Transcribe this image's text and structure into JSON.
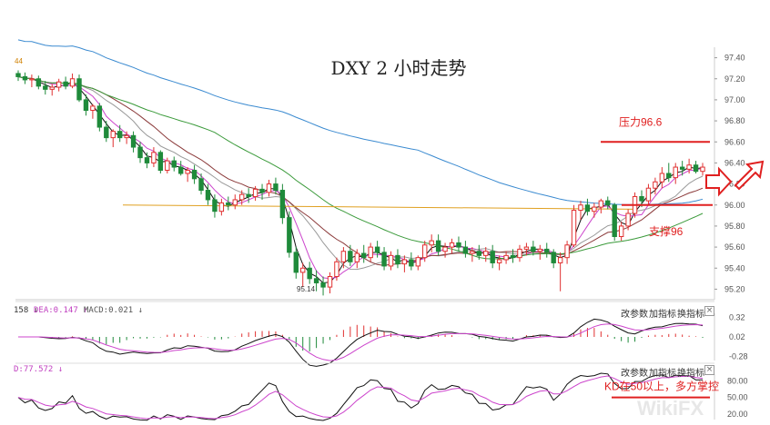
{
  "chart_data": {
    "type": "candlestick",
    "title": "DXY 2 小时走势",
    "price_axis": {
      "ticks": [
        "97.40",
        "97.20",
        "97.00",
        "96.80",
        "96.60",
        "96.40",
        "96.20",
        "96.00",
        "95.80",
        "95.60",
        "95.40",
        "95.20"
      ],
      "ylim": [
        95.1,
        97.5
      ]
    },
    "corner_labels": {
      "top_left": "44",
      "low_label": "95.14"
    },
    "annotations": [
      {
        "text": "压力96.6",
        "level": 96.6
      },
      {
        "text": "支撑96",
        "level": 96.0
      }
    ],
    "candles": [
      [
        97.25,
        97.28,
        97.18,
        97.22
      ],
      [
        97.22,
        97.26,
        97.15,
        97.19
      ],
      [
        97.19,
        97.24,
        97.12,
        97.2
      ],
      [
        97.2,
        97.23,
        97.1,
        97.13
      ],
      [
        97.13,
        97.18,
        97.05,
        97.1
      ],
      [
        97.1,
        97.15,
        97.04,
        97.12
      ],
      [
        97.12,
        97.2,
        97.08,
        97.17
      ],
      [
        97.17,
        97.22,
        97.1,
        97.13
      ],
      [
        97.13,
        97.25,
        97.11,
        97.2
      ],
      [
        97.2,
        97.24,
        96.98,
        97.0
      ],
      [
        97.0,
        97.05,
        96.85,
        96.9
      ],
      [
        96.9,
        96.96,
        96.82,
        96.94
      ],
      [
        96.94,
        96.97,
        96.7,
        96.74
      ],
      [
        96.74,
        96.8,
        96.6,
        96.64
      ],
      [
        96.64,
        96.72,
        96.55,
        96.7
      ],
      [
        96.7,
        96.76,
        96.6,
        96.64
      ],
      [
        96.64,
        96.7,
        96.58,
        96.66
      ],
      [
        96.66,
        96.7,
        96.5,
        96.55
      ],
      [
        96.55,
        96.6,
        96.4,
        96.45
      ],
      [
        96.45,
        96.5,
        96.35,
        96.4
      ],
      [
        96.4,
        96.55,
        96.36,
        96.5
      ],
      [
        96.5,
        96.52,
        96.3,
        96.33
      ],
      [
        96.33,
        96.45,
        96.3,
        96.42
      ],
      [
        96.42,
        96.46,
        96.32,
        96.36
      ],
      [
        96.36,
        96.42,
        96.28,
        96.3
      ],
      [
        96.3,
        96.36,
        96.22,
        96.33
      ],
      [
        96.33,
        96.38,
        96.2,
        96.25
      ],
      [
        96.25,
        96.3,
        96.1,
        96.14
      ],
      [
        96.14,
        96.2,
        96.0,
        96.05
      ],
      [
        96.05,
        96.1,
        95.88,
        95.94
      ],
      [
        95.94,
        96.06,
        95.9,
        96.02
      ],
      [
        96.02,
        96.08,
        95.95,
        96.0
      ],
      [
        96.0,
        96.1,
        95.96,
        96.05
      ],
      [
        96.05,
        96.14,
        96.0,
        96.1
      ],
      [
        96.1,
        96.16,
        96.02,
        96.08
      ],
      [
        96.08,
        96.18,
        96.04,
        96.15
      ],
      [
        96.15,
        96.2,
        96.05,
        96.12
      ],
      [
        96.12,
        96.24,
        96.08,
        96.2
      ],
      [
        96.2,
        96.26,
        96.1,
        96.14
      ],
      [
        96.14,
        96.2,
        95.82,
        95.88
      ],
      [
        95.88,
        95.94,
        95.5,
        95.55
      ],
      [
        95.55,
        95.6,
        95.3,
        95.36
      ],
      [
        95.36,
        95.45,
        95.22,
        95.4
      ],
      [
        95.4,
        95.46,
        95.25,
        95.3
      ],
      [
        95.3,
        95.38,
        95.18,
        95.26
      ],
      [
        95.26,
        95.32,
        95.14,
        95.22
      ],
      [
        95.22,
        95.36,
        95.16,
        95.32
      ],
      [
        95.32,
        95.5,
        95.28,
        95.46
      ],
      [
        95.46,
        95.6,
        95.4,
        95.56
      ],
      [
        95.56,
        95.62,
        95.42,
        95.46
      ],
      [
        95.46,
        95.58,
        95.4,
        95.54
      ],
      [
        95.54,
        95.62,
        95.45,
        95.5
      ],
      [
        95.5,
        95.64,
        95.46,
        95.6
      ],
      [
        95.6,
        95.66,
        95.5,
        95.55
      ],
      [
        95.55,
        95.6,
        95.38,
        95.42
      ],
      [
        95.42,
        95.56,
        95.38,
        95.52
      ],
      [
        95.52,
        95.58,
        95.4,
        95.44
      ],
      [
        95.44,
        95.52,
        95.36,
        95.48
      ],
      [
        95.48,
        95.55,
        95.38,
        95.42
      ],
      [
        95.42,
        95.52,
        95.38,
        95.5
      ],
      [
        95.5,
        95.66,
        95.46,
        95.62
      ],
      [
        95.62,
        95.72,
        95.55,
        95.66
      ],
      [
        95.66,
        95.72,
        95.52,
        95.56
      ],
      [
        95.56,
        95.64,
        95.5,
        95.6
      ],
      [
        95.6,
        95.68,
        95.54,
        95.64
      ],
      [
        95.64,
        95.7,
        95.56,
        95.6
      ],
      [
        95.6,
        95.66,
        95.5,
        95.54
      ],
      [
        95.54,
        95.6,
        95.46,
        95.56
      ],
      [
        95.56,
        95.62,
        95.48,
        95.52
      ],
      [
        95.52,
        95.6,
        95.46,
        95.56
      ],
      [
        95.56,
        95.62,
        95.4,
        95.45
      ],
      [
        95.45,
        95.52,
        95.38,
        95.48
      ],
      [
        95.48,
        95.56,
        95.44,
        95.52
      ],
      [
        95.52,
        95.58,
        95.45,
        95.5
      ],
      [
        95.5,
        95.62,
        95.46,
        95.58
      ],
      [
        95.58,
        95.64,
        95.52,
        95.6
      ],
      [
        95.6,
        95.66,
        95.52,
        95.56
      ],
      [
        95.56,
        95.62,
        95.48,
        95.58
      ],
      [
        95.58,
        95.64,
        95.5,
        95.55
      ],
      [
        95.55,
        95.58,
        95.4,
        95.45
      ],
      [
        95.45,
        95.55,
        95.18,
        95.5
      ],
      [
        95.5,
        95.66,
        95.44,
        95.62
      ],
      [
        95.62,
        96.0,
        95.6,
        95.95
      ],
      [
        95.95,
        96.04,
        95.86,
        96.0
      ],
      [
        96.0,
        96.06,
        95.9,
        95.94
      ],
      [
        95.94,
        96.02,
        95.88,
        95.98
      ],
      [
        95.98,
        96.06,
        95.92,
        96.04
      ],
      [
        96.04,
        96.08,
        95.96,
        96.0
      ],
      [
        96.0,
        96.02,
        95.66,
        95.7
      ],
      [
        95.7,
        95.84,
        95.66,
        95.8
      ],
      [
        95.8,
        95.96,
        95.76,
        95.92
      ],
      [
        95.92,
        96.12,
        95.88,
        96.08
      ],
      [
        96.08,
        96.14,
        95.98,
        96.04
      ],
      [
        96.04,
        96.2,
        96.0,
        96.16
      ],
      [
        96.16,
        96.26,
        96.1,
        96.22
      ],
      [
        96.22,
        96.36,
        96.16,
        96.3
      ],
      [
        96.3,
        96.4,
        96.22,
        96.26
      ],
      [
        96.26,
        96.4,
        96.2,
        96.36
      ],
      [
        96.36,
        96.42,
        96.28,
        96.34
      ],
      [
        96.34,
        96.44,
        96.3,
        96.38
      ],
      [
        96.38,
        96.42,
        96.3,
        96.32
      ],
      [
        96.32,
        96.4,
        96.28,
        96.36
      ]
    ],
    "macd_panel": {
      "legend_left": "158 ↓",
      "legend_dea": "DEA:0.147 ↑",
      "legend_macd": "MACD:0.021 ↓",
      "ticks": [
        "0.32",
        "0.02",
        "-0.28"
      ],
      "ylim": [
        -0.34,
        0.38
      ]
    },
    "kdj_panel": {
      "legend_d": "D:77.572 ↓",
      "ticks": [
        "80.00",
        "50.00",
        "20.00"
      ],
      "annotation": "KD在50以上，多方掌控",
      "ylim": [
        10,
        92
      ]
    },
    "panel_controls": [
      "改参数",
      "加指标",
      "换指标"
    ],
    "colors": {
      "up": "#e03030",
      "down": "#1e8a3a",
      "ma_fast": "#111111",
      "ma_mid": "#cc44cc",
      "ma_slow": "#999999",
      "ma_brown": "#8b3a3a",
      "ma_green": "#3a9a3a",
      "ma_blue": "#3a8ad0",
      "ma_orange": "#e0a020",
      "annotation": "#e02020"
    },
    "watermark": "WikiFX"
  }
}
